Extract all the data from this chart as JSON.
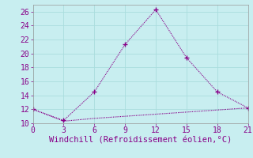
{
  "line1_x": [
    0,
    3,
    6,
    9,
    12,
    15,
    18,
    21
  ],
  "line1_y": [
    12,
    10.4,
    14.5,
    21.3,
    26.3,
    19.4,
    14.5,
    12.2
  ],
  "line2_x": [
    0,
    3,
    6,
    9,
    12,
    15,
    18,
    21
  ],
  "line2_y": [
    12,
    10.3,
    10.7,
    11.0,
    11.3,
    11.6,
    11.9,
    12.2
  ],
  "line_color": "#880088",
  "bg_color": "#c8eef0",
  "xlabel": "Windchill (Refroidissement éolien,°C)",
  "xlim": [
    0,
    21
  ],
  "ylim": [
    10,
    27
  ],
  "xticks": [
    0,
    3,
    6,
    9,
    12,
    15,
    18,
    21
  ],
  "yticks": [
    10,
    12,
    14,
    16,
    18,
    20,
    22,
    24,
    26
  ],
  "grid_color": "#aadddd",
  "xlabel_fontsize": 7.5,
  "tick_fontsize": 7
}
